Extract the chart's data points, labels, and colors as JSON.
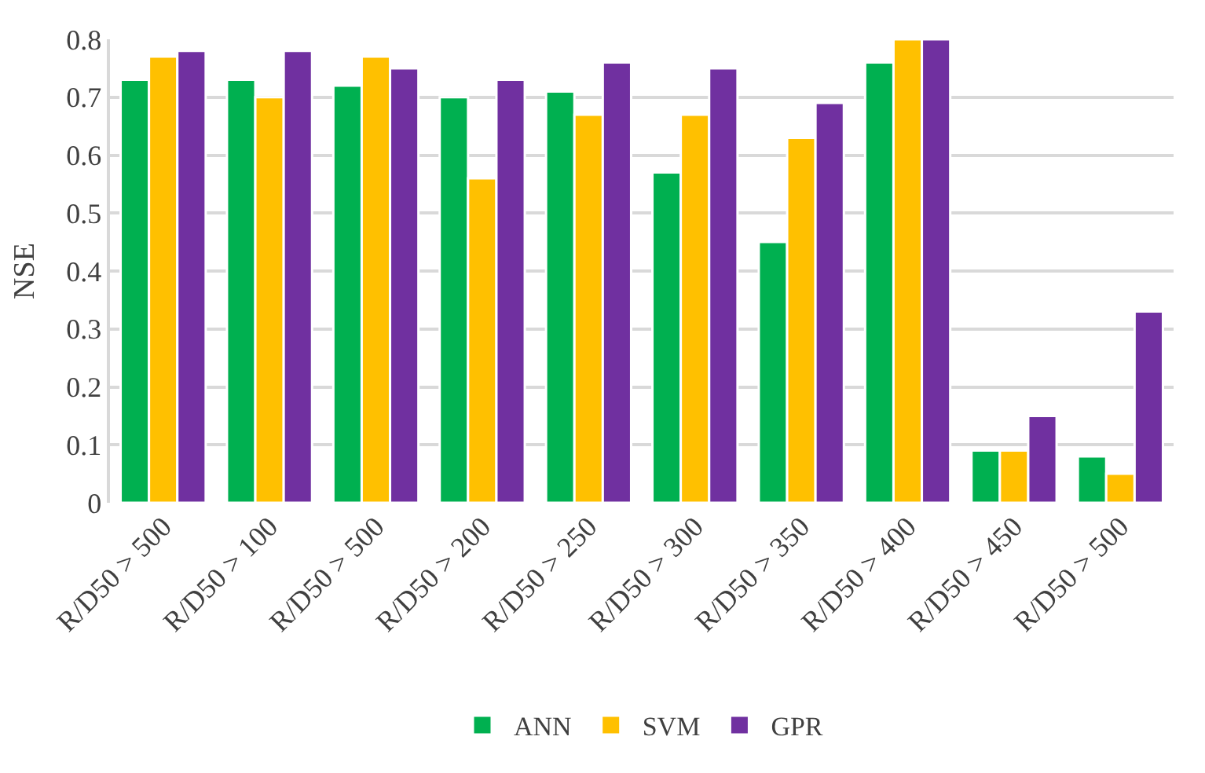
{
  "chart_data": {
    "type": "bar",
    "ylabel": "NSE",
    "categories": [
      "R/D50 > 500",
      "R/D50 > 100",
      "R/D50 > 500",
      "R/D50 > 200",
      "R/D50 > 250",
      "R/D50 > 300",
      "R/D50 > 350",
      "R/D50 > 400",
      "R/D50 > 450",
      "R/D50 > 500"
    ],
    "series": [
      {
        "name": "ANN",
        "color": "#00b050",
        "values": [
          0.73,
          0.73,
          0.72,
          0.7,
          0.71,
          0.57,
          0.45,
          0.76,
          0.09,
          0.08
        ]
      },
      {
        "name": "SVM",
        "color": "#ffc000",
        "values": [
          0.77,
          0.7,
          0.77,
          0.56,
          0.67,
          0.67,
          0.63,
          0.8,
          0.09,
          0.05
        ]
      },
      {
        "name": "GPR",
        "color": "#7030a0",
        "values": [
          0.78,
          0.78,
          0.75,
          0.73,
          0.76,
          0.75,
          0.69,
          0.8,
          0.15,
          0.33
        ]
      }
    ],
    "ylim": [
      0,
      0.8
    ],
    "yticks": [
      0,
      {
        "value": 0.1,
        "label": "0.1"
      },
      {
        "value": 0.2,
        "label": "0.2"
      },
      {
        "value": 0.3,
        "label": "0.3"
      },
      {
        "value": 0.4,
        "label": "0.4"
      },
      {
        "value": 0.5,
        "label": "0.5"
      },
      {
        "value": 0.6,
        "label": "0.6"
      },
      {
        "value": 0.7,
        "label": "0.7"
      },
      {
        "value": 0.8,
        "label": "0.8"
      }
    ],
    "grid": "y",
    "legend": "bottom"
  }
}
